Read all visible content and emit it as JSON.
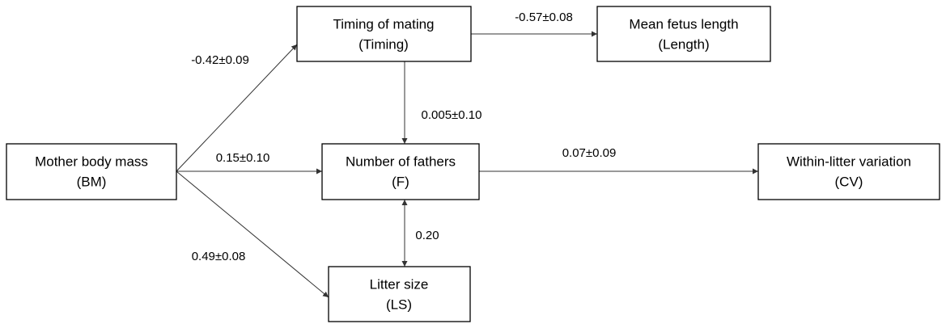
{
  "nodes": [
    {
      "label": "Mother body mass",
      "abbr": "(BM)"
    },
    {
      "label": "Timing of mating",
      "abbr": "(Timing)"
    },
    {
      "label": "Mean fetus length",
      "abbr": "(Length)"
    },
    {
      "label": "Number of fathers",
      "abbr": "(F)"
    },
    {
      "label": "Within-litter variation",
      "abbr": "(CV)"
    },
    {
      "label": "Litter size",
      "abbr": "(LS)"
    }
  ],
  "edges": [
    {
      "label": "-0.42±0.09"
    },
    {
      "label": "0.15±0.10"
    },
    {
      "label": "0.49±0.08"
    },
    {
      "label": "-0.57±0.08"
    },
    {
      "label": "0.005±0.10"
    },
    {
      "label": "0.07±0.09"
    },
    {
      "label": "0.20"
    }
  ]
}
